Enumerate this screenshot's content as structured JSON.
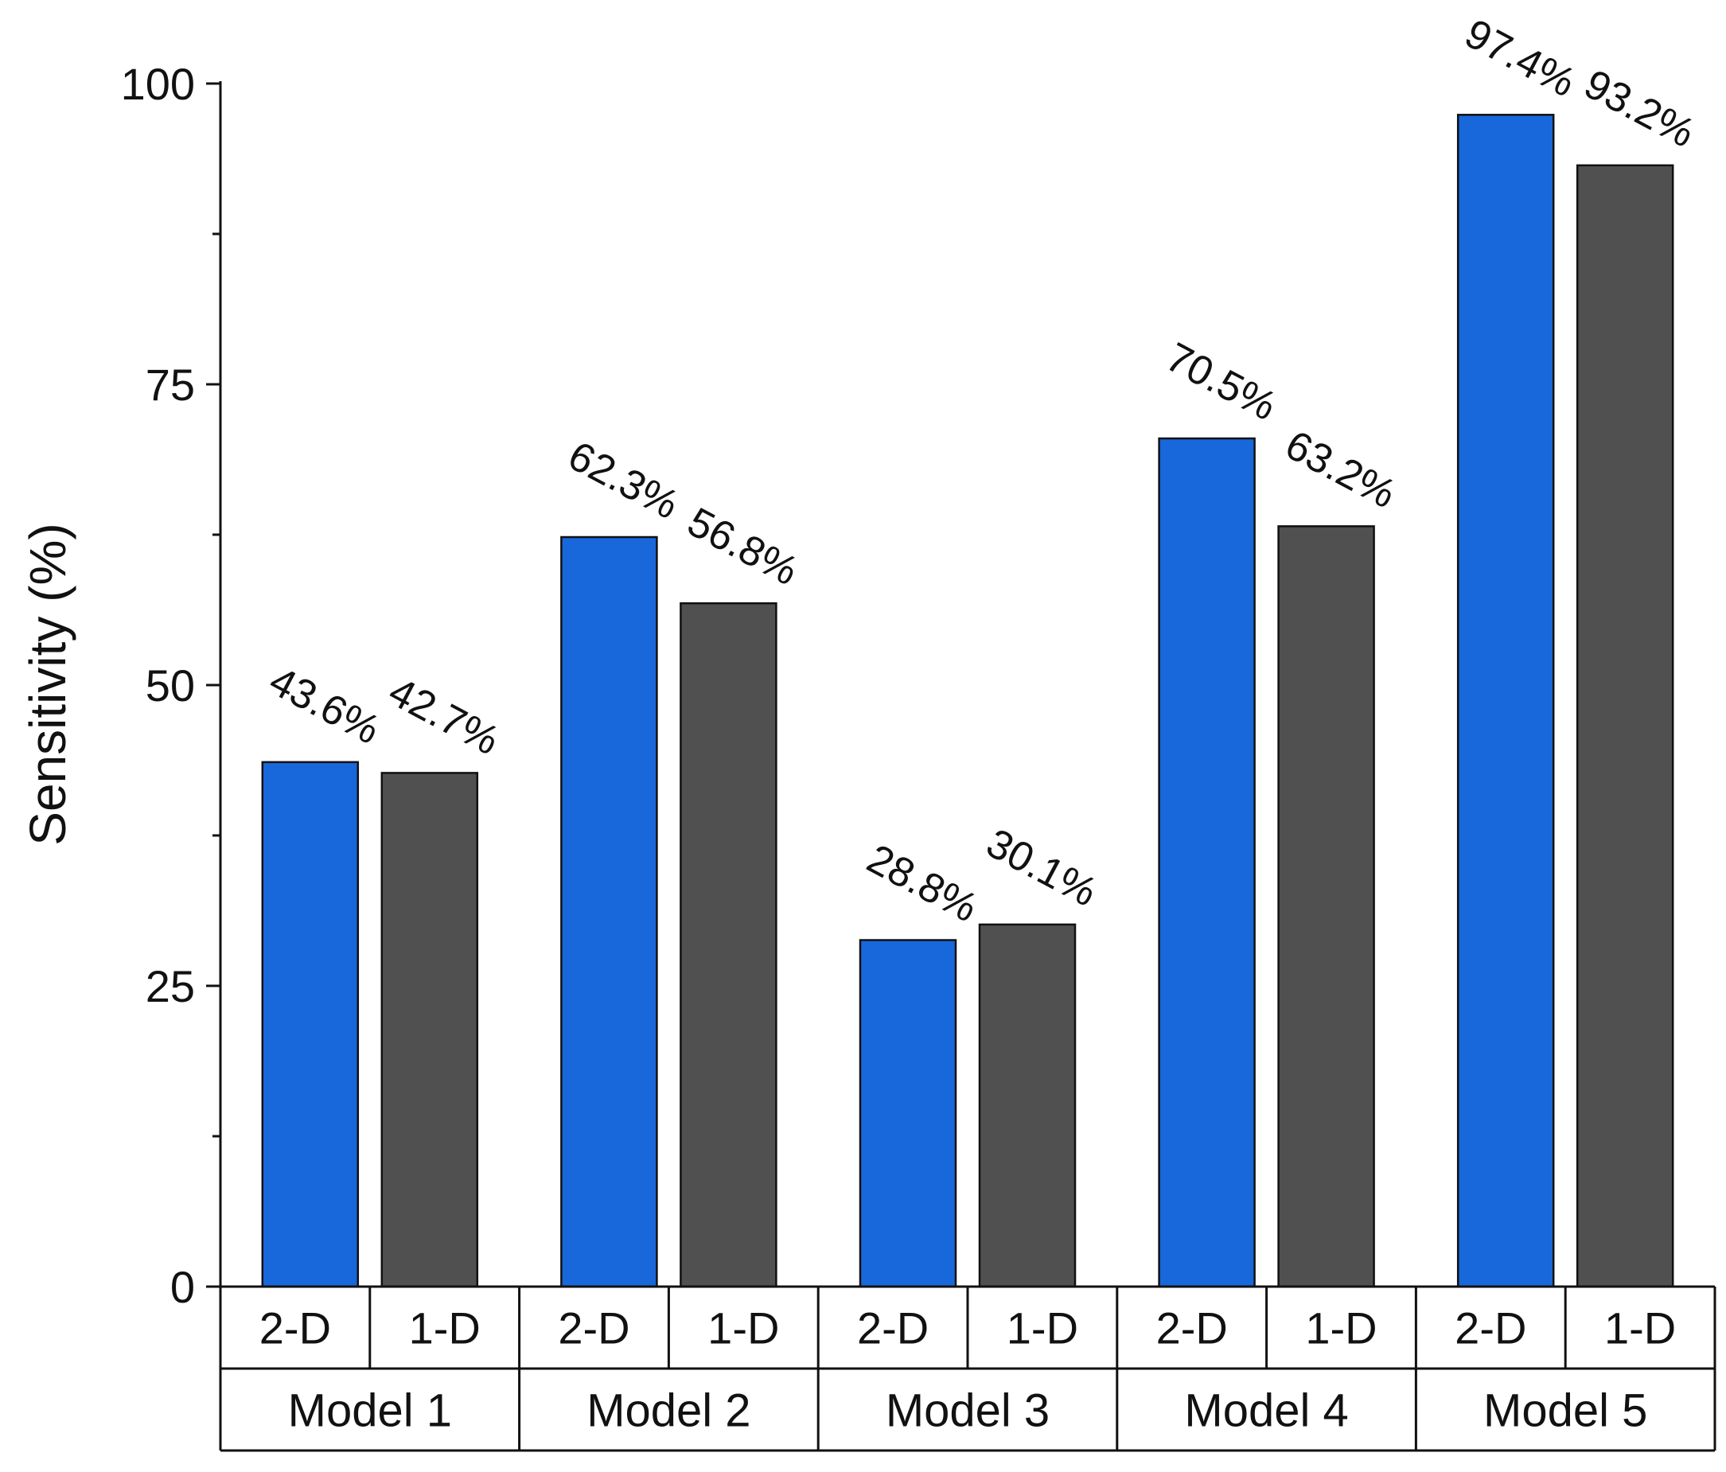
{
  "chart_data": {
    "type": "bar",
    "title": "",
    "xlabel": "",
    "ylabel": "Sensitivity (%)",
    "ylim": [
      0,
      100
    ],
    "yticks": [
      0,
      25,
      50,
      75,
      100
    ],
    "yticks_minor": [
      12.5,
      37.5,
      62.5,
      87.5
    ],
    "groups": [
      "Model 1",
      "Model 2",
      "Model 3",
      "Model 4",
      "Model 5"
    ],
    "subcategories": [
      "2-D",
      "1-D"
    ],
    "series": [
      {
        "name": "2-D",
        "color": "#1868DC",
        "values": [
          43.6,
          62.3,
          28.8,
          70.5,
          97.4
        ],
        "labels": [
          "43.6%",
          "62.3%",
          "28.8%",
          "70.5%",
          "97.4%"
        ]
      },
      {
        "name": "1-D",
        "color": "#505050",
        "values": [
          42.7,
          56.8,
          30.1,
          63.2,
          93.2
        ],
        "labels": [
          "42.7%",
          "56.8%",
          "30.1%",
          "63.2%",
          "93.2%"
        ]
      }
    ],
    "grid": false,
    "legend": "none"
  }
}
